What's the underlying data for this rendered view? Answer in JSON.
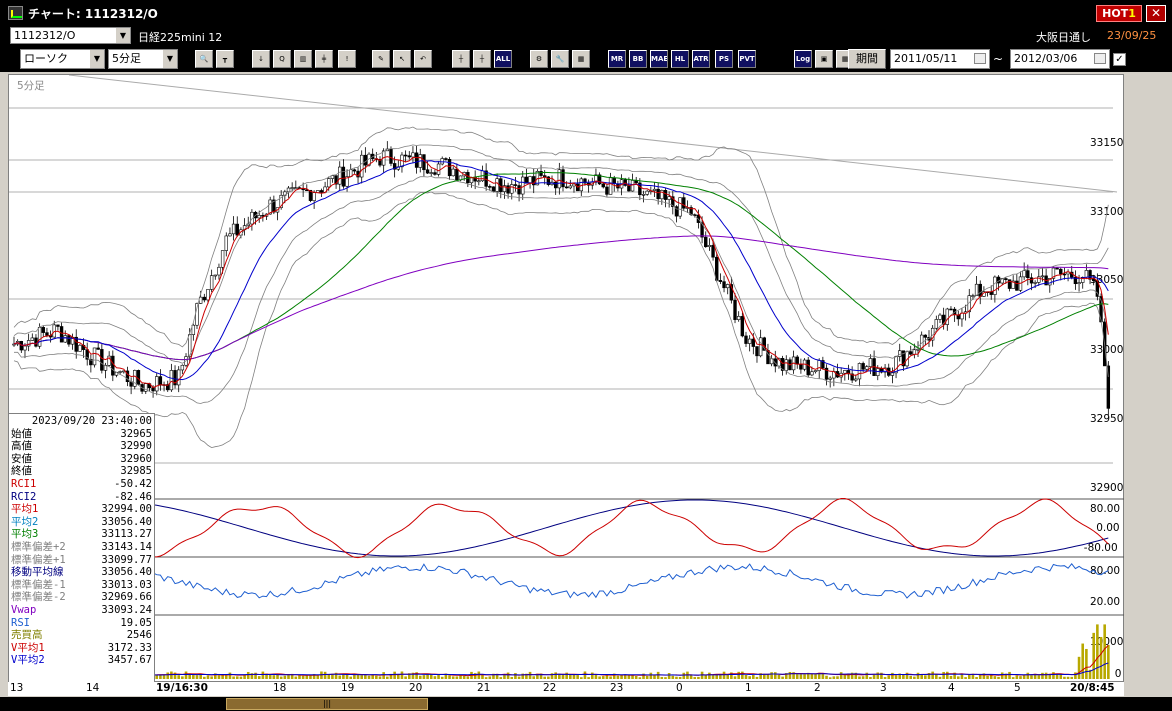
{
  "titlebar": {
    "title": "チャート: 1112312/O",
    "hot_label": "HOT",
    "hot_number": "1",
    "close_glyph": "✕"
  },
  "header": {
    "symbol_code": "1112312/O",
    "name": "日経225mini 12",
    "market": "大阪日通し",
    "date": "23/09/25"
  },
  "toolbar": {
    "chart_type": "ローソク",
    "interval": "5分足",
    "period_label": "期間",
    "date_from": "2011/05/11",
    "date_to": "2012/03/06",
    "tilde": "~",
    "check_glyph": "✓",
    "icons": [
      {
        "name": "zoom-icon",
        "label": "🔍"
      },
      {
        "name": "split-icon",
        "label": "┳"
      },
      {
        "name": "download-icon",
        "label": "↓"
      },
      {
        "name": "search-chart-icon",
        "label": "Q"
      },
      {
        "name": "bar-chart-icon",
        "label": "▥"
      },
      {
        "name": "candle-compare-icon",
        "label": "╪"
      },
      {
        "name": "alert-icon",
        "label": "!"
      },
      {
        "name": "pencil-icon",
        "label": "✎"
      },
      {
        "name": "pointer-icon",
        "label": "↖"
      },
      {
        "name": "undo-icon",
        "label": "↶"
      },
      {
        "name": "candle-add-icon",
        "label": "┼"
      },
      {
        "name": "candle-remove-icon",
        "label": "┼"
      },
      {
        "name": "all-icon",
        "label": "ALL"
      },
      {
        "name": "settings-icon",
        "label": "⚙"
      },
      {
        "name": "wrench-icon",
        "label": "🔧"
      },
      {
        "name": "palette-icon",
        "label": "▦"
      },
      {
        "name": "indicator-mr-icon",
        "label": "MR"
      },
      {
        "name": "indicator-bb-icon",
        "label": "BB"
      },
      {
        "name": "indicator-mae-icon",
        "label": "MAE"
      },
      {
        "name": "indicator-hl-icon",
        "label": "HL"
      },
      {
        "name": "indicator-atr-icon",
        "label": "ATR"
      },
      {
        "name": "indicator-ps-icon",
        "label": "PS"
      },
      {
        "name": "indicator-pvt-icon",
        "label": "PVT"
      },
      {
        "name": "log-icon",
        "label": "Log"
      },
      {
        "name": "window-icon",
        "label": "▣"
      },
      {
        "name": "indicator-gr-icon",
        "label": "▦"
      }
    ]
  },
  "chart": {
    "interval_label": "5分足",
    "price_ticks": [
      "33150",
      "33100",
      "33050",
      "33000",
      "32950",
      "32900"
    ],
    "rci_ticks": [
      "80.00",
      "0.00",
      "-80.00"
    ],
    "rsi_ticks": [
      "80.00",
      "20.00"
    ],
    "vol_ticks": [
      "10000",
      "0"
    ],
    "x_labels": [
      "13",
      "14",
      "19/16:30",
      "18",
      "19",
      "20",
      "21",
      "22",
      "23",
      "0",
      "1",
      "2",
      "3",
      "4",
      "5",
      "20/8:45"
    ],
    "colors": {
      "candle": "#000000",
      "rci1": "#cc0000",
      "rci2": "#000080",
      "ma1": "#cc0000",
      "ma2": "#0000cc",
      "ma3": "#008000",
      "vwap": "#8000c0",
      "bands": "#808080",
      "rsi": "#1e5fd0",
      "volume": "#b8a800"
    }
  },
  "info": {
    "datetime": "2023/09/20  23:40:00",
    "rows": [
      {
        "label": "始値",
        "value": "32965",
        "color": "#000000"
      },
      {
        "label": "高値",
        "value": "32990",
        "color": "#000000"
      },
      {
        "label": "安値",
        "value": "32960",
        "color": "#000000"
      },
      {
        "label": "終値",
        "value": "32985",
        "color": "#000000"
      },
      {
        "label": "RCI1",
        "value": "-50.42",
        "color": "#cc0000"
      },
      {
        "label": "RCI2",
        "value": "-82.46",
        "color": "#000080"
      },
      {
        "label": "平均1",
        "value": "32994.00",
        "color": "#cc0000"
      },
      {
        "label": "平均2",
        "value": "33056.40",
        "color": "#0080c0"
      },
      {
        "label": "平均3",
        "value": "33113.27",
        "color": "#008000"
      },
      {
        "label": "標準偏差+2",
        "value": "33143.14",
        "color": "#808080"
      },
      {
        "label": "標準偏差+1",
        "value": "33099.77",
        "color": "#808080"
      },
      {
        "label": "移動平均線",
        "value": "33056.40",
        "color": "#000080"
      },
      {
        "label": "標準偏差-1",
        "value": "33013.03",
        "color": "#808080"
      },
      {
        "label": "標準偏差-2",
        "value": "32969.66",
        "color": "#808080"
      },
      {
        "label": "Vwap",
        "value": "33093.24",
        "color": "#8000c0"
      },
      {
        "label": "RSI",
        "value": "19.05",
        "color": "#1e5fd0"
      },
      {
        "label": "売買高",
        "value": "2546",
        "color": "#808000"
      },
      {
        "label": "V平均1",
        "value": "3172.33",
        "color": "#cc0000"
      },
      {
        "label": "V平均2",
        "value": "3457.67",
        "color": "#0000cc"
      }
    ]
  },
  "scrollbar": {
    "grip": "|||"
  }
}
